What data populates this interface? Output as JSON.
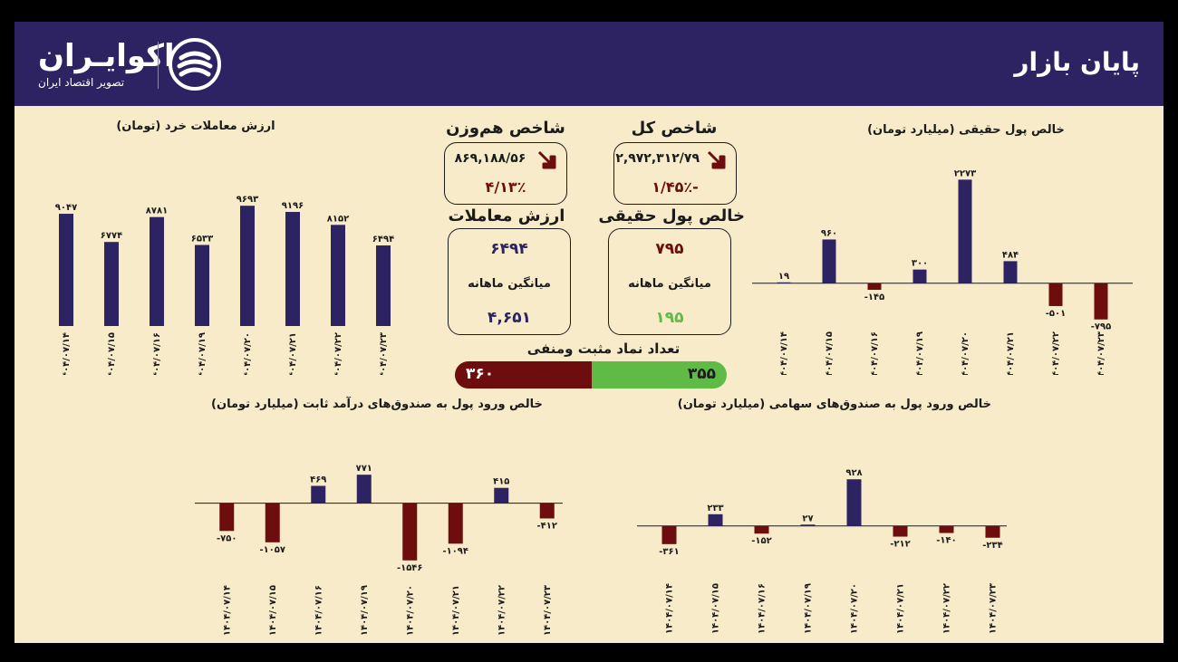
{
  "header": {
    "brand": "اکوایـران",
    "brand_sub": "تصویر اقتصاد ایران",
    "title": "پایان بازار"
  },
  "colors": {
    "positive": "#2d2363",
    "negative": "#6e0d0d",
    "green": "#5fbb46",
    "bg": "#f7ebc9",
    "header": "#2d2363"
  },
  "indices": {
    "total": {
      "label": "شاخص کل",
      "value": "۲,۹۷۲,۳۱۲/۷۹",
      "change": "-۱/۴۵٪",
      "arrow": "down-arrow-icon"
    },
    "equal": {
      "label": "شاخص هم‌وزن",
      "value": "۸۶۹,۱۸۸/۵۶",
      "change": "۴/۱۳٪",
      "arrow": "down-arrow-icon"
    }
  },
  "real_money": {
    "label": "خالص پول حقیقی",
    "value": "۷۹۵",
    "avg_label": "میانگین ماهانه",
    "avg_value": "۱۹۵"
  },
  "trade_value": {
    "label": "ارزش معاملات",
    "value": "۶۴۹۴",
    "avg_label": "میانگین ماهانه",
    "avg_value": "۴,۶۵۱"
  },
  "symbols": {
    "label": "تعداد نماد مثبت ومنفی",
    "positive": "۳۵۵",
    "negative": "۳۶۰",
    "positive_count": 355,
    "negative_count": 360
  },
  "chart_data": [
    {
      "id": "retail",
      "type": "bar",
      "title": "ارزش معاملات خرد (تومان)",
      "categories": [
        "۱۴۰۴/۰۷/۱۴",
        "۱۴۰۴/۰۷/۱۵",
        "۱۴۰۴/۰۷/۱۶",
        "۱۴۰۴/۰۷/۱۹",
        "۱۴۰۴/۰۷/۲۰",
        "۱۴۰۴/۰۷/۲۱",
        "۱۴۰۴/۰۷/۲۲",
        "۱۴۰۴/۰۷/۲۳"
      ],
      "values": [
        9047,
        6774,
        8781,
        6533,
        9693,
        9196,
        8152,
        6494
      ],
      "labels": [
        "۹۰۴۷",
        "۶۷۷۴",
        "۸۷۸۱",
        "۶۵۳۳",
        "۹۶۹۳",
        "۹۱۹۶",
        "۸۱۵۲",
        "۶۴۹۴"
      ],
      "ylim": [
        0,
        10000
      ]
    },
    {
      "id": "realmoney",
      "type": "bar",
      "title": "خالص پول حقیقی (میلیارد تومان)",
      "categories": [
        "۱۴۰۴/۰۷/۱۴",
        "۱۴۰۴/۰۷/۱۵",
        "۱۴۰۴/۰۷/۱۶",
        "۱۴۰۴/۰۷/۱۹",
        "۱۴۰۴/۰۷/۲۰",
        "۱۴۰۴/۰۷/۲۱",
        "۱۴۰۴/۰۷/۲۲",
        "۱۴۰۴/۰۷/۲۳"
      ],
      "values": [
        19,
        960,
        -145,
        300,
        2273,
        484,
        -501,
        -795
      ],
      "labels": [
        "۱۹",
        "۹۶۰",
        "-۱۴۵",
        "۳۰۰",
        "۲۲۷۳",
        "۴۸۴",
        "-۵۰۱",
        "-۷۹۵"
      ],
      "ylim": [
        -800,
        2300
      ]
    },
    {
      "id": "fixedincome",
      "type": "bar",
      "title": "خالص ورود پول به صندوق‌های درآمد ثابت (میلیارد تومان)",
      "categories": [
        "۱۴۰۴/۰۷/۱۴",
        "۱۴۰۴/۰۷/۱۵",
        "۱۴۰۴/۰۷/۱۶",
        "۱۴۰۴/۰۷/۱۹",
        "۱۴۰۴/۰۷/۲۰",
        "۱۴۰۴/۰۷/۲۱",
        "۱۴۰۴/۰۷/۲۲",
        "۱۴۰۴/۰۷/۲۳"
      ],
      "values": [
        -750,
        -1057,
        469,
        771,
        -1546,
        -1094,
        415,
        -412
      ],
      "labels": [
        "-۷۵۰",
        "-۱۰۵۷",
        "۴۶۹",
        "۷۷۱",
        "-۱۵۴۶",
        "-۱۰۹۴",
        "۴۱۵",
        "-۴۱۲"
      ],
      "ylim": [
        -1600,
        800
      ]
    },
    {
      "id": "equityfunds",
      "type": "bar",
      "title": "خالص ورود پول به صندوق‌های سهامی (میلیارد تومان)",
      "categories": [
        "۱۴۰۴/۰۷/۱۴",
        "۱۴۰۴/۰۷/۱۵",
        "۱۴۰۴/۰۷/۱۶",
        "۱۴۰۴/۰۷/۱۹",
        "۱۴۰۴/۰۷/۲۰",
        "۱۴۰۴/۰۷/۲۱",
        "۱۴۰۴/۰۷/۲۲",
        "۱۴۰۴/۰۷/۲۳"
      ],
      "values": [
        -361,
        233,
        -152,
        27,
        928,
        -212,
        -140,
        -234
      ],
      "labels": [
        "-۳۶۱",
        "۲۳۳",
        "-۱۵۲",
        "۲۷",
        "۹۲۸",
        "-۲۱۲",
        "-۱۴۰",
        "-۲۳۴"
      ],
      "ylim": [
        -400,
        950
      ]
    }
  ]
}
